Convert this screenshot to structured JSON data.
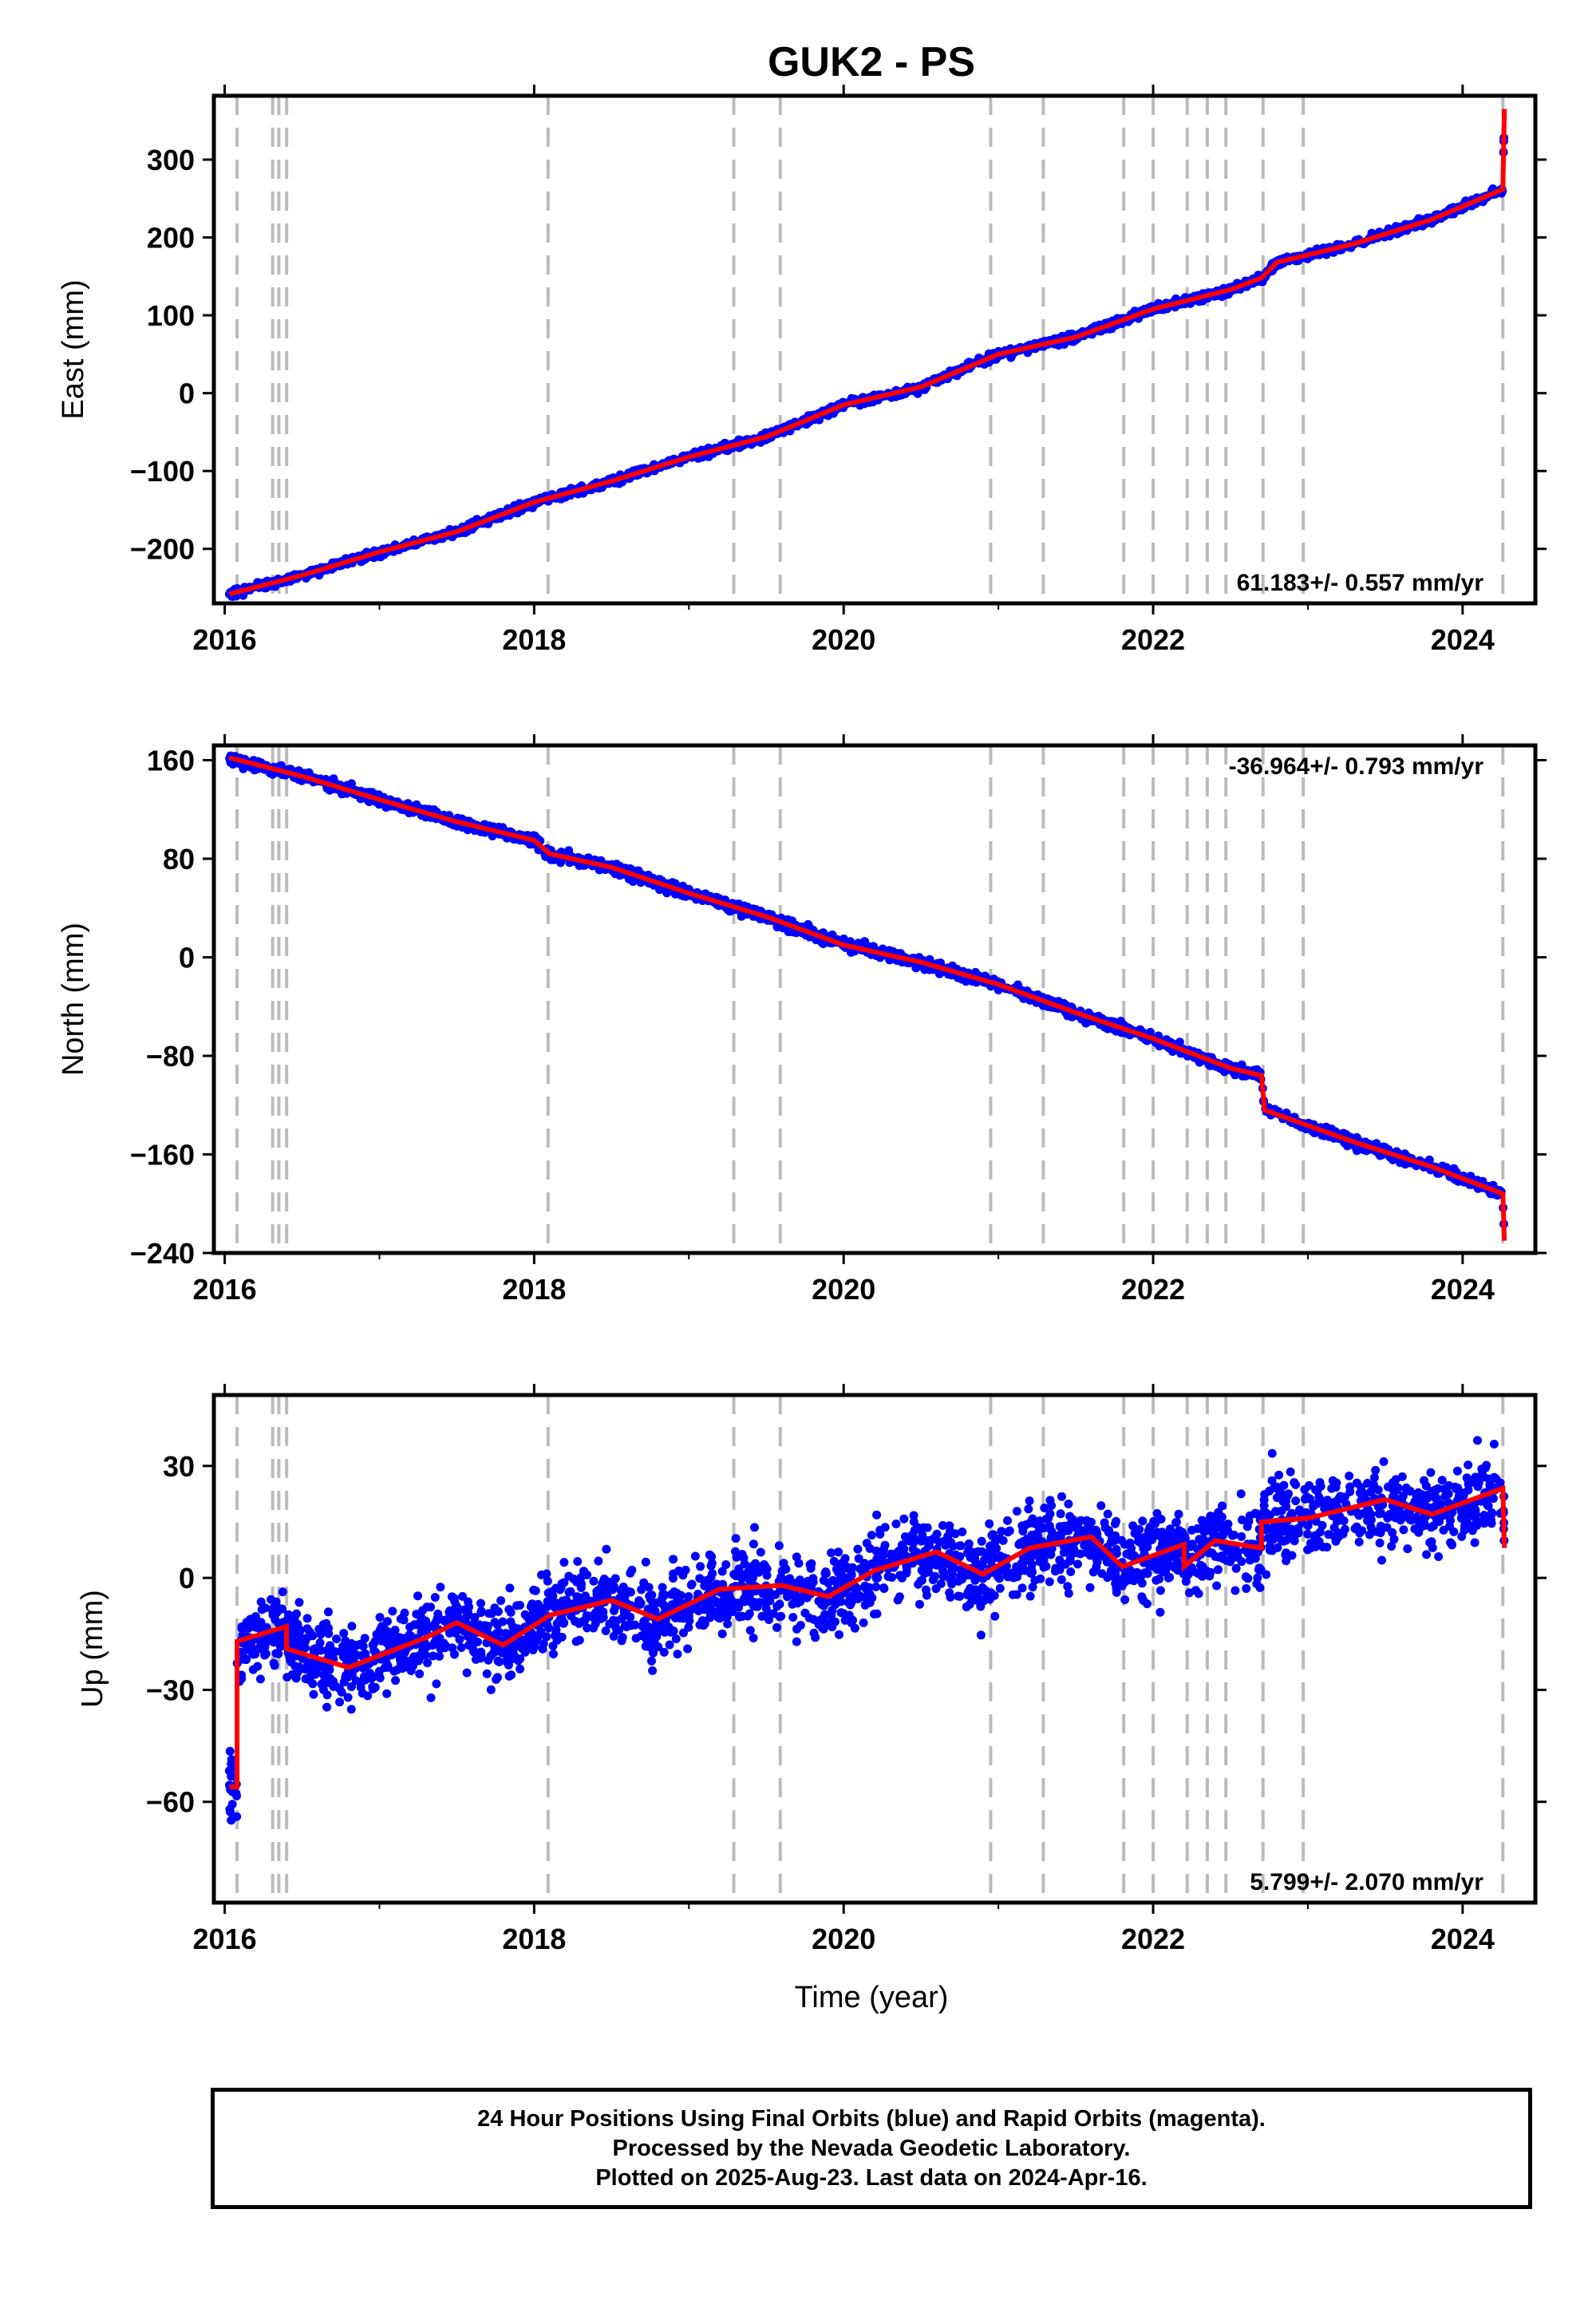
{
  "title": "GUK2 - PS",
  "xlabel": "Time (year)",
  "footer": {
    "line1": "24 Hour Positions Using Final Orbits (blue) and Rapid Orbits (magenta).",
    "line2": "Processed by the Nevada Geodetic Laboratory.",
    "line3": "Plotted on 2025-Aug-23. Last data on 2024-Apr-16."
  },
  "colors": {
    "points": "#0000ff",
    "fit": "#ff0000",
    "event_lines": "#bbbbbb",
    "frame": "#000000"
  },
  "chart_data": [
    {
      "type": "scatter",
      "ylabel": "East (mm)",
      "rate": "61.183+/- 0.557 mm/yr",
      "xlim": [
        2015.93,
        2024.47
      ],
      "ylim": [
        -270,
        382
      ],
      "xticks": [
        2016,
        2018,
        2020,
        2022,
        2024
      ],
      "yticks": [
        -200,
        -100,
        0,
        100,
        200,
        300
      ],
      "ytick_labels": [
        "−200",
        "−100",
        "0",
        "100",
        "200",
        "300"
      ],
      "events": [
        2016.08,
        2016.31,
        2016.35,
        2016.4,
        2018.09,
        2019.29,
        2019.59,
        2020.95,
        2021.29,
        2021.81,
        2022.0,
        2022.22,
        2022.35,
        2022.47,
        2022.71,
        2022.97,
        2024.26
      ],
      "fit": [
        [
          2016.03,
          -258
        ],
        [
          2016.5,
          -234
        ],
        [
          2017.0,
          -204
        ],
        [
          2017.5,
          -178
        ],
        [
          2018.0,
          -140
        ],
        [
          2018.5,
          -113
        ],
        [
          2019.0,
          -82
        ],
        [
          2019.5,
          -56
        ],
        [
          2020.0,
          -15
        ],
        [
          2020.5,
          8
        ],
        [
          2021.0,
          50
        ],
        [
          2021.5,
          72
        ],
        [
          2022.0,
          108
        ],
        [
          2022.5,
          133
        ],
        [
          2022.7,
          148
        ],
        [
          2022.8,
          168
        ],
        [
          2023.3,
          192
        ],
        [
          2023.8,
          223
        ],
        [
          2024.26,
          262
        ],
        [
          2024.27,
          365
        ]
      ]
    },
    {
      "type": "scatter",
      "ylabel": "North (mm)",
      "rate": "-36.964+/- 0.793 mm/yr",
      "xlim": [
        2015.93,
        2024.47
      ],
      "ylim": [
        -240,
        172
      ],
      "xticks": [
        2016,
        2018,
        2020,
        2022,
        2024
      ],
      "yticks": [
        -240,
        -160,
        -80,
        0,
        80,
        160
      ],
      "ytick_labels": [
        "−240",
        "−160",
        "−80",
        "0",
        "80",
        "160"
      ],
      "events": [
        2016.08,
        2016.31,
        2016.35,
        2016.4,
        2018.09,
        2019.29,
        2019.59,
        2020.95,
        2021.29,
        2021.81,
        2022.0,
        2022.22,
        2022.35,
        2022.47,
        2022.71,
        2022.97,
        2024.26
      ],
      "fit": [
        [
          2016.03,
          162
        ],
        [
          2016.5,
          147
        ],
        [
          2017.0,
          128
        ],
        [
          2017.5,
          110
        ],
        [
          2018.0,
          95
        ],
        [
          2018.1,
          84
        ],
        [
          2018.5,
          73
        ],
        [
          2019.0,
          52
        ],
        [
          2019.5,
          33
        ],
        [
          2020.0,
          10
        ],
        [
          2020.5,
          -4
        ],
        [
          2021.0,
          -22
        ],
        [
          2021.5,
          -45
        ],
        [
          2022.0,
          -66
        ],
        [
          2022.5,
          -90
        ],
        [
          2022.7,
          -96
        ],
        [
          2022.72,
          -124
        ],
        [
          2023.3,
          -150
        ],
        [
          2023.8,
          -170
        ],
        [
          2024.26,
          -192
        ],
        [
          2024.27,
          -230
        ]
      ]
    },
    {
      "type": "scatter",
      "ylabel": "Up (mm)",
      "rate": "5.799+/- 2.070 mm/yr",
      "xlim": [
        2015.93,
        2024.47
      ],
      "ylim": [
        -87,
        49
      ],
      "xticks": [
        2016,
        2018,
        2020,
        2022,
        2024
      ],
      "yticks": [
        -60,
        -30,
        0,
        30
      ],
      "ytick_labels": [
        "−60",
        "−30",
        "0",
        "30"
      ],
      "events": [
        2016.08,
        2016.31,
        2016.35,
        2016.4,
        2018.09,
        2019.29,
        2019.59,
        2020.95,
        2021.29,
        2021.81,
        2022.0,
        2022.22,
        2022.35,
        2022.47,
        2022.71,
        2022.97,
        2024.26
      ],
      "fit": [
        [
          2016.03,
          -56
        ],
        [
          2016.08,
          -56
        ],
        [
          2016.08,
          -17
        ],
        [
          2016.4,
          -13
        ],
        [
          2016.4,
          -19
        ],
        [
          2016.8,
          -24
        ],
        [
          2017.3,
          -16
        ],
        [
          2017.5,
          -12
        ],
        [
          2017.8,
          -18
        ],
        [
          2018.1,
          -10
        ],
        [
          2018.5,
          -6
        ],
        [
          2018.8,
          -11
        ],
        [
          2019.2,
          -3
        ],
        [
          2019.6,
          -2
        ],
        [
          2019.9,
          -5
        ],
        [
          2020.2,
          2
        ],
        [
          2020.6,
          7
        ],
        [
          2020.9,
          1
        ],
        [
          2021.2,
          8
        ],
        [
          2021.6,
          11
        ],
        [
          2021.8,
          3
        ],
        [
          2022.2,
          9
        ],
        [
          2022.2,
          3
        ],
        [
          2022.4,
          10
        ],
        [
          2022.7,
          8
        ],
        [
          2022.7,
          15
        ],
        [
          2023.0,
          16
        ],
        [
          2023.5,
          21
        ],
        [
          2023.8,
          17
        ],
        [
          2024.26,
          24
        ],
        [
          2024.27,
          8
        ]
      ]
    }
  ]
}
